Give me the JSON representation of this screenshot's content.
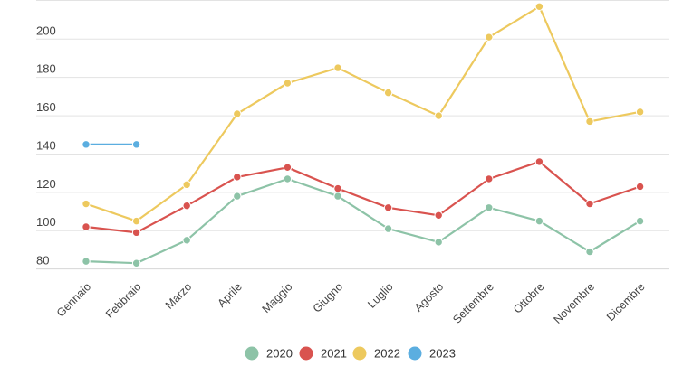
{
  "chart_data": {
    "type": "line",
    "title": "",
    "xlabel": "",
    "ylabel": "",
    "categories": [
      "Gennaio",
      "Febbraio",
      "Marzo",
      "Aprile",
      "Maggio",
      "Giugno",
      "Luglio",
      "Agosto",
      "Settembre",
      "Ottobre",
      "Novembre",
      "Dicembre"
    ],
    "yticks": [
      80,
      100,
      120,
      140,
      160,
      180,
      200
    ],
    "ylim": [
      78,
      220
    ],
    "grid": true,
    "legend_position": "bottom-center",
    "series": [
      {
        "name": "2020",
        "color": "#8dc3a7",
        "values": [
          84,
          83,
          95,
          118,
          127,
          118,
          101,
          94,
          112,
          105,
          89,
          105
        ]
      },
      {
        "name": "2021",
        "color": "#d9534f",
        "values": [
          102,
          99,
          113,
          128,
          133,
          122,
          112,
          108,
          127,
          136,
          114,
          123
        ]
      },
      {
        "name": "2022",
        "color": "#edc95e",
        "values": [
          114,
          105,
          124,
          161,
          177,
          185,
          172,
          160,
          201,
          217,
          157,
          162
        ]
      },
      {
        "name": "2023",
        "color": "#5baee0",
        "values": [
          145,
          145,
          null,
          null,
          null,
          null,
          null,
          null,
          null,
          null,
          null,
          null
        ]
      }
    ]
  }
}
